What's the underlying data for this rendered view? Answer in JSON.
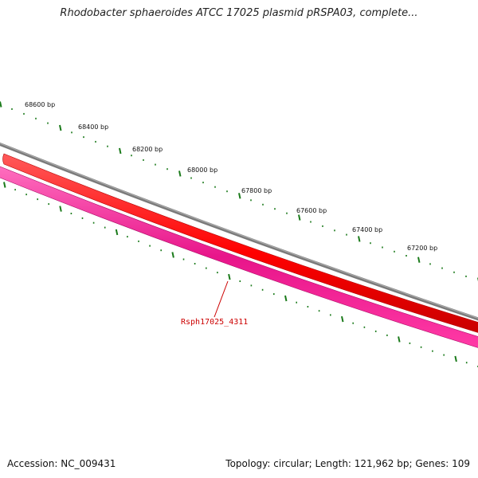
{
  "title": "Rhodobacter sphaeroides ATCC 17025 plasmid pRSPA03, complete...",
  "footer": {
    "accession": "Accession: NC_009431",
    "stats": "Topology: circular; Length: 121,962 bp; Genes: 109"
  },
  "ruler": {
    "labels": [
      "68600 bp",
      "68400 bp",
      "68200 bp",
      "68000 bp",
      "67800 bp",
      "67600 bp",
      "67400 bp",
      "67200 bp"
    ],
    "tick_color": "#1a7a1a"
  },
  "tracks": [
    {
      "name": "backbone",
      "color": "#808080"
    },
    {
      "name": "forward-strand-gene",
      "color": "#ff0000"
    },
    {
      "name": "reverse-strand-gene",
      "color": "#ff2a9a"
    }
  ],
  "gene_label": {
    "text": "Rsph17025_4311",
    "color": "#cc0000"
  }
}
